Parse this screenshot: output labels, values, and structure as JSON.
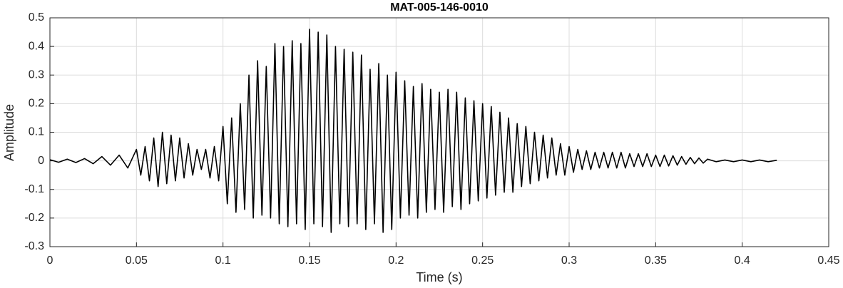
{
  "chart_data": {
    "type": "line",
    "title": "MAT-005-146-0010",
    "x_label": "Time (s)",
    "y_label": "Amplitude",
    "xlim": [
      0,
      0.45
    ],
    "ylim": [
      -0.3,
      0.5
    ],
    "xticks": [
      0,
      0.05,
      0.1,
      0.15,
      0.2,
      0.25,
      0.3,
      0.35,
      0.4,
      0.45
    ],
    "yticks": [
      -0.3,
      -0.2,
      -0.1,
      0,
      0.1,
      0.2,
      0.3,
      0.4,
      0.5
    ],
    "grid": true,
    "series": [
      {
        "color": "#000000",
        "x": [
          0,
          0.005,
          0.01,
          0.015,
          0.02,
          0.025,
          0.03,
          0.035,
          0.04,
          0.045,
          0.05,
          0.0525,
          0.055,
          0.0575,
          0.06,
          0.0625,
          0.065,
          0.0675,
          0.07,
          0.0725,
          0.075,
          0.0775,
          0.08,
          0.0825,
          0.085,
          0.0875,
          0.09,
          0.0925,
          0.095,
          0.0975,
          0.1,
          0.1025,
          0.105,
          0.1075,
          0.11,
          0.1125,
          0.115,
          0.1175,
          0.12,
          0.1225,
          0.125,
          0.1275,
          0.13,
          0.1325,
          0.135,
          0.1375,
          0.14,
          0.1425,
          0.145,
          0.1475,
          0.15,
          0.1525,
          0.155,
          0.1575,
          0.16,
          0.1625,
          0.165,
          0.1675,
          0.17,
          0.1725,
          0.175,
          0.1775,
          0.18,
          0.1825,
          0.185,
          0.1875,
          0.19,
          0.1925,
          0.195,
          0.1975,
          0.2,
          0.2025,
          0.205,
          0.2075,
          0.21,
          0.2125,
          0.215,
          0.2175,
          0.22,
          0.2225,
          0.225,
          0.2275,
          0.23,
          0.2325,
          0.235,
          0.2375,
          0.24,
          0.2425,
          0.245,
          0.2475,
          0.25,
          0.2525,
          0.255,
          0.2575,
          0.26,
          0.2625,
          0.265,
          0.2675,
          0.27,
          0.2725,
          0.275,
          0.2775,
          0.28,
          0.2825,
          0.285,
          0.2875,
          0.29,
          0.2925,
          0.295,
          0.2975,
          0.3,
          0.3025,
          0.305,
          0.3075,
          0.31,
          0.3125,
          0.315,
          0.3175,
          0.32,
          0.3225,
          0.325,
          0.3275,
          0.33,
          0.3325,
          0.335,
          0.3375,
          0.34,
          0.3425,
          0.345,
          0.3475,
          0.35,
          0.3525,
          0.355,
          0.3575,
          0.36,
          0.3625,
          0.365,
          0.3675,
          0.37,
          0.3725,
          0.375,
          0.3775,
          0.38,
          0.385,
          0.39,
          0.395,
          0.4,
          0.405,
          0.41,
          0.415,
          0.42
        ],
        "values": [
          0.004,
          -0.005,
          0.006,
          -0.006,
          0.008,
          -0.01,
          0.015,
          -0.015,
          0.02,
          -0.025,
          0.04,
          -0.05,
          0.05,
          -0.07,
          0.08,
          -0.09,
          0.1,
          -0.08,
          0.09,
          -0.07,
          0.08,
          -0.06,
          0.06,
          -0.05,
          0.04,
          -0.03,
          0.04,
          -0.06,
          0.05,
          -0.07,
          0.12,
          -0.15,
          0.15,
          -0.18,
          0.2,
          -0.17,
          0.3,
          -0.2,
          0.35,
          -0.19,
          0.33,
          -0.2,
          0.41,
          -0.22,
          0.4,
          -0.23,
          0.42,
          -0.22,
          0.41,
          -0.24,
          0.46,
          -0.22,
          0.45,
          -0.23,
          0.44,
          -0.25,
          0.4,
          -0.22,
          0.39,
          -0.23,
          0.38,
          -0.22,
          0.37,
          -0.24,
          0.32,
          -0.22,
          0.34,
          -0.25,
          0.3,
          -0.24,
          0.31,
          -0.2,
          0.28,
          -0.19,
          0.26,
          -0.2,
          0.27,
          -0.18,
          0.25,
          -0.17,
          0.24,
          -0.18,
          0.25,
          -0.16,
          0.24,
          -0.17,
          0.22,
          -0.15,
          0.21,
          -0.14,
          0.2,
          -0.13,
          0.19,
          -0.12,
          0.17,
          -0.11,
          0.15,
          -0.11,
          0.13,
          -0.09,
          0.12,
          -0.08,
          0.1,
          -0.07,
          0.09,
          -0.06,
          0.08,
          -0.05,
          0.06,
          -0.05,
          0.05,
          -0.04,
          0.04,
          -0.03,
          0.035,
          -0.03,
          0.03,
          -0.025,
          0.03,
          -0.025,
          0.03,
          -0.025,
          0.03,
          -0.025,
          0.025,
          -0.02,
          0.025,
          -0.02,
          0.025,
          -0.02,
          0.02,
          -0.02,
          0.02,
          -0.018,
          0.018,
          -0.015,
          0.015,
          -0.012,
          0.012,
          -0.01,
          0.01,
          -0.008,
          0.006,
          -0.003,
          0.003,
          -0.003,
          0.003,
          -0.003,
          0.003,
          -0.003,
          0.002
        ]
      }
    ]
  }
}
